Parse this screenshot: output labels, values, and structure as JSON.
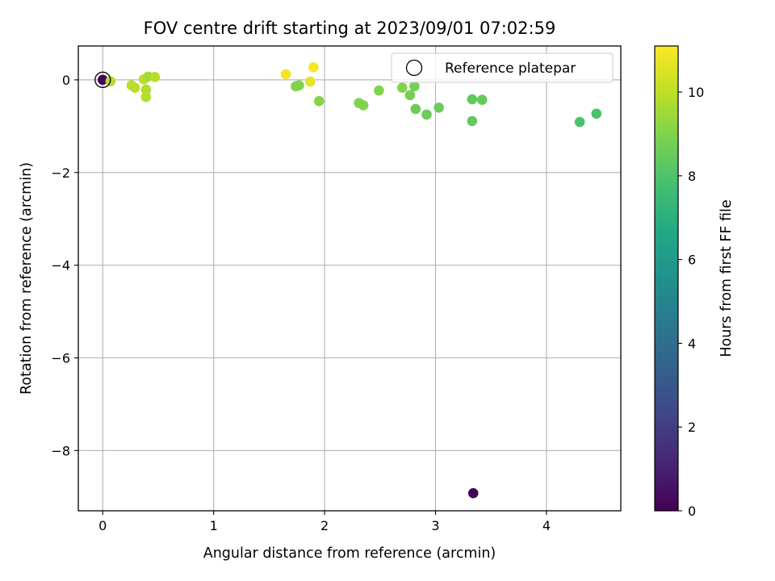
{
  "chart_data": {
    "type": "scatter",
    "title": "FOV centre drift starting at 2023/09/01 07:02:59",
    "xlabel": "Angular distance from reference (arcmin)",
    "ylabel": "Rotation from reference (arcmin)",
    "xlim": [
      -0.22,
      4.67
    ],
    "ylim": [
      -9.3,
      0.73
    ],
    "xticks": [
      "0",
      "1",
      "2",
      "3",
      "4"
    ],
    "yticks": [
      "0",
      "−2",
      "−4",
      "−6",
      "−8"
    ],
    "grid": true,
    "colormap": "viridis",
    "colorbar": {
      "label": "Hours from first FF file",
      "range": [
        0,
        11.1
      ],
      "ticks": [
        "0",
        "2",
        "4",
        "6",
        "8",
        "10"
      ]
    },
    "legend": {
      "position": "top-right",
      "entries": [
        "Reference platepar"
      ]
    },
    "reference_point": {
      "x": 0,
      "y": 0
    },
    "series": [
      {
        "points": [
          {
            "x": 0.0,
            "y": 0.0,
            "c": 0.0
          },
          {
            "x": 3.34,
            "y": -8.92,
            "c": 0.1
          },
          {
            "x": 0.07,
            "y": -0.03,
            "c": 9.8
          },
          {
            "x": 0.26,
            "y": -0.12,
            "c": 9.9
          },
          {
            "x": 0.29,
            "y": -0.17,
            "c": 9.9
          },
          {
            "x": 0.37,
            "y": 0.01,
            "c": 9.9
          },
          {
            "x": 0.39,
            "y": -0.21,
            "c": 9.8
          },
          {
            "x": 0.39,
            "y": -0.37,
            "c": 9.8
          },
          {
            "x": 0.41,
            "y": 0.07,
            "c": 9.6
          },
          {
            "x": 0.47,
            "y": 0.06,
            "c": 9.9
          },
          {
            "x": 1.65,
            "y": 0.12,
            "c": 10.9
          },
          {
            "x": 1.87,
            "y": -0.04,
            "c": 10.7
          },
          {
            "x": 1.9,
            "y": 0.27,
            "c": 11.0
          },
          {
            "x": 1.74,
            "y": -0.14,
            "c": 9.0
          },
          {
            "x": 1.77,
            "y": -0.12,
            "c": 9.0
          },
          {
            "x": 1.95,
            "y": -0.46,
            "c": 9.1
          },
          {
            "x": 2.31,
            "y": -0.5,
            "c": 9.0
          },
          {
            "x": 2.35,
            "y": -0.55,
            "c": 9.0
          },
          {
            "x": 2.49,
            "y": -0.23,
            "c": 9.0
          },
          {
            "x": 2.7,
            "y": -0.17,
            "c": 9.0
          },
          {
            "x": 2.77,
            "y": -0.33,
            "c": 8.8
          },
          {
            "x": 2.81,
            "y": -0.14,
            "c": 8.8
          },
          {
            "x": 2.82,
            "y": -0.63,
            "c": 8.6
          },
          {
            "x": 2.92,
            "y": -0.75,
            "c": 8.6
          },
          {
            "x": 3.03,
            "y": -0.6,
            "c": 8.6
          },
          {
            "x": 3.33,
            "y": -0.42,
            "c": 8.4
          },
          {
            "x": 3.33,
            "y": -0.89,
            "c": 8.4
          },
          {
            "x": 3.42,
            "y": -0.43,
            "c": 8.4
          },
          {
            "x": 4.3,
            "y": -0.91,
            "c": 7.9
          },
          {
            "x": 4.45,
            "y": -0.73,
            "c": 7.9
          }
        ]
      }
    ]
  }
}
